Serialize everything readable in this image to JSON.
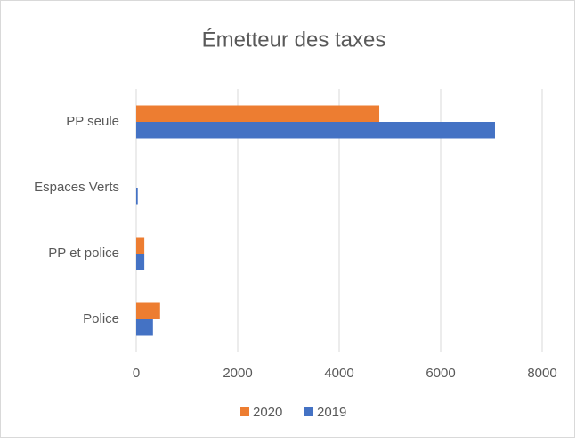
{
  "chart_data": {
    "type": "bar",
    "orientation": "horizontal",
    "title": "Émetteur des taxes",
    "categories": [
      "PP seule",
      "Espaces Verts",
      "PP et police",
      "Police"
    ],
    "series": [
      {
        "name": "2020",
        "color": "#ed7d31",
        "values": [
          4790,
          0,
          160,
          470
        ]
      },
      {
        "name": "2019",
        "color": "#4472c4",
        "values": [
          7070,
          30,
          160,
          330
        ]
      }
    ],
    "xlim": [
      0,
      8000
    ],
    "xticks": [
      0,
      2000,
      4000,
      6000,
      8000
    ],
    "grid": true,
    "legend": "bottom"
  }
}
